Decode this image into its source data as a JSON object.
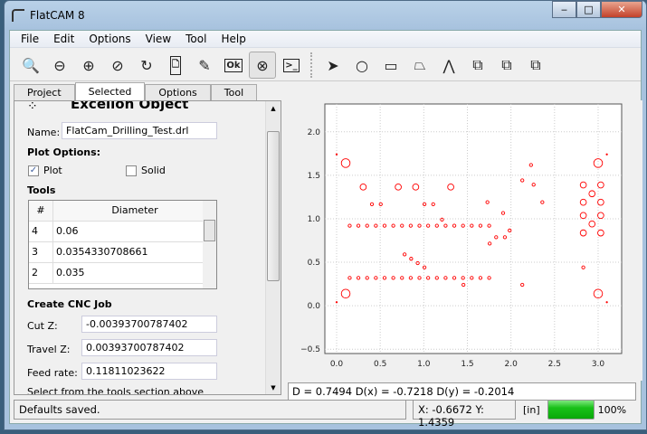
{
  "window": {
    "title": "FlatCAM 8",
    "minimize": "‒",
    "maximize": "□",
    "close": "✕"
  },
  "menu": [
    "File",
    "Edit",
    "Options",
    "View",
    "Tool",
    "Help"
  ],
  "toolbar": [
    {
      "icon": "zoom-fit-icon",
      "glyph": "🔍"
    },
    {
      "icon": "zoom-out-icon",
      "glyph": "⊖"
    },
    {
      "icon": "zoom-in-icon",
      "glyph": "⊕"
    },
    {
      "icon": "clear-plot-icon",
      "glyph": "⊘"
    },
    {
      "icon": "replot-icon",
      "glyph": "↻"
    },
    {
      "icon": "new-file-icon",
      "glyph": "🗋"
    },
    {
      "icon": "edit-file-icon",
      "glyph": "✎"
    },
    {
      "icon": "ok-file-icon",
      "glyph": "Ok"
    },
    {
      "icon": "delete-file-icon",
      "glyph": "⊗"
    },
    {
      "icon": "shell-icon",
      "glyph": ">_"
    }
  ],
  "draw_toolbar": [
    {
      "icon": "select-arrow-icon",
      "glyph": "➤"
    },
    {
      "icon": "circle-icon",
      "glyph": "○"
    },
    {
      "icon": "rectangle-icon",
      "glyph": "▭"
    },
    {
      "icon": "polygon-icon",
      "glyph": "⏢"
    },
    {
      "icon": "path-icon",
      "glyph": "⋀"
    },
    {
      "icon": "union-icon",
      "glyph": "⧉"
    },
    {
      "icon": "intersection-icon",
      "glyph": "⧉"
    },
    {
      "icon": "subtract-icon",
      "glyph": "⧉"
    }
  ],
  "tabs": [
    "Project",
    "Selected",
    "Options",
    "Tool"
  ],
  "selected_tab": "Selected",
  "panel": {
    "heading": "Excellon Object",
    "name_label": "Name:",
    "name_value": "FlatCam_Drilling_Test.drl",
    "plot_options": "Plot Options:",
    "plot_label": "Plot",
    "plot_checked": true,
    "solid_label": "Solid",
    "solid_checked": false,
    "tools_label": "Tools",
    "tools_headers": [
      "#",
      "Diameter"
    ],
    "tools_rows": [
      [
        "4",
        "0.06"
      ],
      [
        "3",
        "0.0354330708661"
      ],
      [
        "2",
        "0.035"
      ]
    ],
    "cnc_heading": "Create CNC Job",
    "cutz_label": "Cut Z:",
    "cutz_value": "-0.00393700787402",
    "travelz_label": "Travel Z:",
    "travelz_value": "0.00393700787402",
    "feed_label": "Feed rate:",
    "feed_value": "0.11811023622",
    "hint": "Select from the tools section above"
  },
  "chart_data": {
    "type": "scatter",
    "xlim": [
      -0.135,
      3.27
    ],
    "ylim": [
      -0.55,
      2.32
    ],
    "xticks": [
      "0.0",
      "0.5",
      "1.0",
      "1.5",
      "2.0",
      "2.5",
      "3.0"
    ],
    "yticks": [
      "-0.5",
      "0.0",
      "0.5",
      "1.0",
      "1.5",
      "2.0"
    ],
    "grid": true,
    "marker": "open circle",
    "color": "#ff0000",
    "drills": [
      {
        "d": 0.1,
        "points": [
          [
            0.104,
            1.64
          ],
          [
            3.0,
            1.64
          ],
          [
            0.104,
            0.139
          ],
          [
            3.0,
            0.139
          ]
        ]
      },
      {
        "d": 0.07,
        "points": [
          [
            0.305,
            1.365
          ],
          [
            0.707,
            1.365
          ],
          [
            0.907,
            1.365
          ],
          [
            1.309,
            1.365
          ],
          [
            2.83,
            1.389
          ],
          [
            3.03,
            1.389
          ],
          [
            2.93,
            1.288
          ],
          [
            2.83,
            1.19
          ],
          [
            3.03,
            1.19
          ],
          [
            2.83,
            1.038
          ],
          [
            3.03,
            1.038
          ],
          [
            2.93,
            0.94
          ],
          [
            2.83,
            0.837
          ],
          [
            3.03,
            0.837
          ]
        ]
      },
      {
        "d": 0.035,
        "points": [
          [
            0.405,
            1.167
          ],
          [
            0.506,
            1.167
          ],
          [
            1.008,
            1.167
          ],
          [
            1.108,
            1.167
          ],
          [
            1.209,
            0.99
          ],
          [
            1.73,
            1.19
          ],
          [
            1.91,
            1.066
          ],
          [
            2.23,
            1.618
          ],
          [
            2.13,
            1.441
          ],
          [
            2.26,
            1.392
          ],
          [
            2.36,
            1.19
          ],
          [
            1.985,
            0.865
          ],
          [
            1.83,
            0.788
          ],
          [
            1.93,
            0.788
          ],
          [
            1.756,
            0.715
          ],
          [
            0.78,
            0.59
          ],
          [
            0.855,
            0.54
          ],
          [
            0.93,
            0.49
          ],
          [
            1.008,
            0.44
          ],
          [
            1.455,
            0.24
          ],
          [
            2.13,
            0.24
          ],
          [
            2.83,
            0.44
          ],
          [
            0.15,
            0.92
          ],
          [
            0.25,
            0.92
          ],
          [
            0.35,
            0.92
          ],
          [
            0.45,
            0.92
          ],
          [
            0.55,
            0.92
          ],
          [
            0.65,
            0.92
          ],
          [
            0.75,
            0.92
          ],
          [
            0.85,
            0.92
          ],
          [
            0.95,
            0.92
          ],
          [
            1.05,
            0.92
          ],
          [
            1.15,
            0.92
          ],
          [
            1.25,
            0.92
          ],
          [
            1.35,
            0.92
          ],
          [
            1.45,
            0.92
          ],
          [
            1.55,
            0.92
          ],
          [
            1.65,
            0.92
          ],
          [
            1.75,
            0.92
          ],
          [
            0.15,
            0.32
          ],
          [
            0.25,
            0.32
          ],
          [
            0.35,
            0.32
          ],
          [
            0.45,
            0.32
          ],
          [
            0.55,
            0.32
          ],
          [
            0.65,
            0.32
          ],
          [
            0.75,
            0.32
          ],
          [
            0.85,
            0.32
          ],
          [
            0.95,
            0.32
          ],
          [
            1.05,
            0.32
          ],
          [
            1.15,
            0.32
          ],
          [
            1.25,
            0.32
          ],
          [
            1.35,
            0.32
          ],
          [
            1.45,
            0.32
          ],
          [
            1.55,
            0.32
          ],
          [
            1.65,
            0.32
          ],
          [
            1.75,
            0.32
          ]
        ]
      },
      {
        "d": 0.01,
        "points": [
          [
            0.0,
            1.74
          ],
          [
            3.1,
            1.74
          ],
          [
            0.0,
            0.04
          ],
          [
            3.1,
            0.04
          ]
        ]
      }
    ]
  },
  "measure": "D = 0.7494  D(x) = -0.7218  D(y) = -0.2014",
  "status": {
    "message": "Defaults saved.",
    "coords": "X: -0.6672   Y: 1.4359",
    "units": "[in]",
    "progress_percent": 100,
    "progress_text": "100%"
  }
}
